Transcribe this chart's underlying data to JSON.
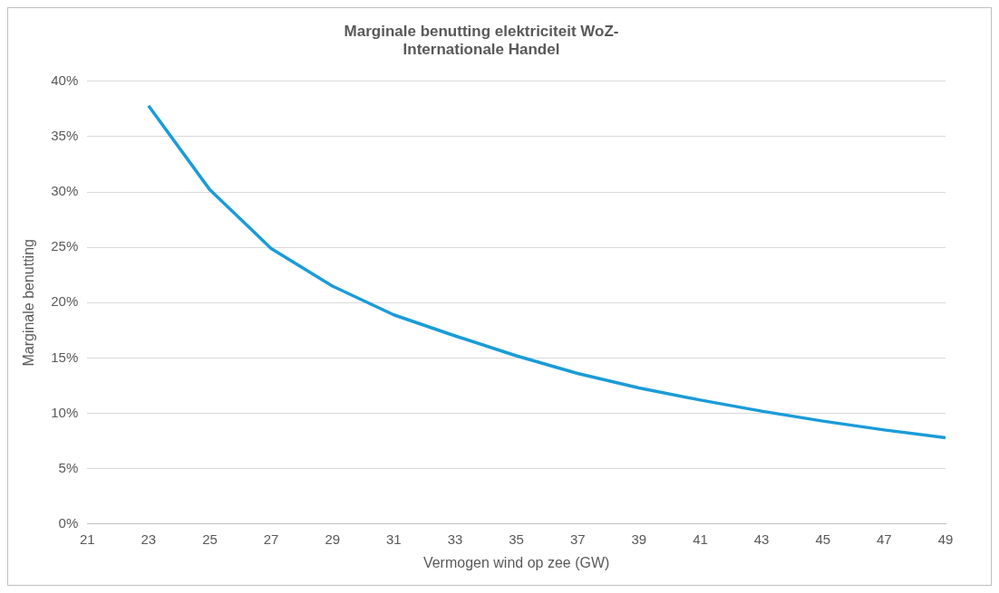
{
  "chart_data": {
    "type": "line",
    "title": "Marginale benutting elektriciteit WoZ-\nInternationale Handel",
    "xlabel": "Vermogen wind op zee (GW)",
    "ylabel": "Marginale benutting",
    "categories": [
      "21",
      "23",
      "25",
      "27",
      "29",
      "31",
      "33",
      "35",
      "37",
      "39",
      "41",
      "43",
      "45",
      "47",
      "49"
    ],
    "series": [
      {
        "color": "#1a9cd8",
        "values": [
          null,
          37.8,
          30.2,
          24.9,
          21.5,
          18.9,
          17.0,
          15.2,
          13.6,
          12.3,
          11.2,
          10.2,
          9.3,
          8.5,
          7.8
        ]
      }
    ],
    "ylim": [
      0,
      40
    ],
    "yticks": [
      {
        "value": 0,
        "label": "0%"
      },
      {
        "value": 5,
        "label": "5%"
      },
      {
        "value": 10,
        "label": "10%"
      },
      {
        "value": 15,
        "label": "15%"
      },
      {
        "value": 20,
        "label": "20%"
      },
      {
        "value": 25,
        "label": "25%"
      },
      {
        "value": 30,
        "label": "30%"
      },
      {
        "value": 35,
        "label": "35%"
      },
      {
        "value": 40,
        "label": "40%"
      }
    ],
    "grid": "y",
    "legend": false,
    "marker": "none",
    "line_style": "solid"
  }
}
